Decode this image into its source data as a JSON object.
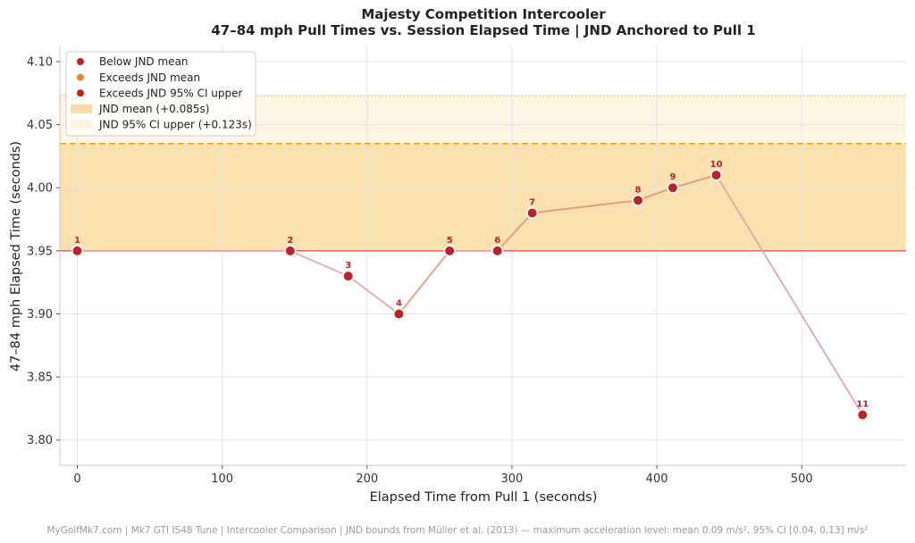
{
  "chart_data": {
    "type": "line",
    "title": "Majesty Competition Intercooler",
    "subtitle": "47–84 mph Pull Times vs. Session Elapsed Time  |  JND Anchored to Pull 1",
    "xlabel": "Elapsed Time from Pull 1 (seconds)",
    "ylabel": "47–84 mph Elapsed Time (seconds)",
    "xlim": [
      -12,
      572
    ],
    "ylim": [
      3.78,
      4.112
    ],
    "xticks": [
      0,
      100,
      200,
      300,
      400,
      500
    ],
    "yticks": [
      3.8,
      3.85,
      3.9,
      3.95,
      4.0,
      4.05,
      4.1
    ],
    "grid": true,
    "legend_position": "top-left",
    "baseline": 3.95,
    "jnd_mean": 4.035,
    "jnd_ci_upper": 4.073,
    "series": [
      {
        "x": [
          0,
          147,
          187,
          222,
          257,
          290,
          314,
          387,
          411,
          441,
          542
        ],
        "y": [
          3.95,
          3.95,
          3.93,
          3.9,
          3.95,
          3.95,
          3.98,
          3.99,
          4.0,
          4.01,
          3.82
        ],
        "labels": [
          "1",
          "2",
          "3",
          "4",
          "5",
          "6",
          "7",
          "8",
          "9",
          "10",
          "11"
        ]
      }
    ],
    "legend": [
      {
        "label": "Below JND mean",
        "kind": "dot",
        "color": "#b8242a"
      },
      {
        "label": "Exceeds JND mean",
        "kind": "dot",
        "color": "#e08a2e"
      },
      {
        "label": "Exceeds JND 95% CI upper",
        "kind": "dot",
        "color": "#c81d1d"
      },
      {
        "label": "JND mean  (+0.085s)",
        "kind": "band",
        "color": "#f8dba6"
      },
      {
        "label": "JND 95% CI upper  (+0.123s)",
        "kind": "band",
        "color": "#fdf2e0"
      }
    ],
    "colors": {
      "point": "#b8242a",
      "line_up": "#e8937b",
      "line_down": "#e3a3a3",
      "baseline": "#e07060",
      "band_mean": "#f9e1b0",
      "band_ci": "#fdf4e4",
      "mean_line": "#eba420",
      "ci_line": "#ecc46a"
    }
  },
  "footer": "MyGolfMk7.com  |  Mk7 GTI IS48 Tune  |  Intercooler Comparison  |  JND bounds from Müller et al. (2013) — maximum acceleration level: mean 0.09 m/s², 95% CI [0.04, 0.13] m/s²"
}
